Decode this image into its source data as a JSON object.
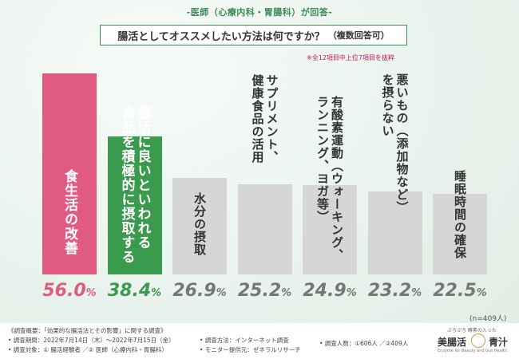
{
  "header": {
    "subtitle": "-医師（心療内科・胃腸科）が回答-",
    "title": "腸活としてオススメしたい方法は何ですか？",
    "title_suffix": "（複数回答可）",
    "note": "※全12項目中上位7項目を抜粋"
  },
  "chart_data": {
    "type": "bar",
    "title": "腸活としてオススメしたい方法は何ですか？（複数回答可）",
    "categories": [
      "食生活の改善",
      "腸活に良いといわれる食品を積極的に摂取する",
      "水分の摂取",
      "サプリメント、健康食品の活用",
      "有酸素運動（ウォーキング、ランニング、ヨガ等）",
      "悪いもの（添加物など）を摂らない",
      "睡眠時間の確保"
    ],
    "label_lines": [
      [
        "食生活の改善"
      ],
      [
        "腸活に良いといわれる",
        "食品を積極的に摂取する"
      ],
      [
        "水分の摂取"
      ],
      [
        "サプリメント、",
        "健康食品の活用"
      ],
      [
        "有酸素運動（ウォーキング、",
        "ランニング、ヨガ等）"
      ],
      [
        "悪いもの（添加物など）",
        "を摂らない"
      ],
      [
        "睡眠時間の確保"
      ]
    ],
    "values": [
      56.0,
      38.4,
      26.9,
      25.2,
      24.9,
      23.2,
      22.5
    ],
    "value_labels": [
      "56.0",
      "38.4",
      "26.9",
      "25.2",
      "24.9",
      "23.2",
      "22.5"
    ],
    "unit": "%",
    "ylim": [
      0,
      56.0
    ],
    "n_label": "(n=409人)",
    "colors": [
      "#e05a82",
      "#3a9a4e",
      "#d6d6d6",
      "#d6d6d6",
      "#d6d6d6",
      "#d6d6d6",
      "#d6d6d6"
    ],
    "value_colors": [
      "#e05a82",
      "#3a9a4e",
      "#777777",
      "#777777",
      "#777777",
      "#777777",
      "#777777"
    ]
  },
  "footer": {
    "overview": "《調査概要：「効果的な腸活法とその影響」に関する調査》",
    "period": "• 調査期間：2022年7月14日（木）〜2022年7月15日（金）",
    "target": "• 調査対象：① 腸活経験者 ／② 医師（心療内科・胃腸科）",
    "method": "• 調査方法：インターネット調査",
    "monitor": "• モニター提供元：ゼネラルリサーチ",
    "count": "• 調査人数：①606人 ／②409人",
    "logo_tagline": "ぷろぷろ 酵素の入った",
    "logo_name_a": "美腸活",
    "logo_name_b": "青汁",
    "logo_sub": "Enzyme for Beauty and Gut Health"
  }
}
